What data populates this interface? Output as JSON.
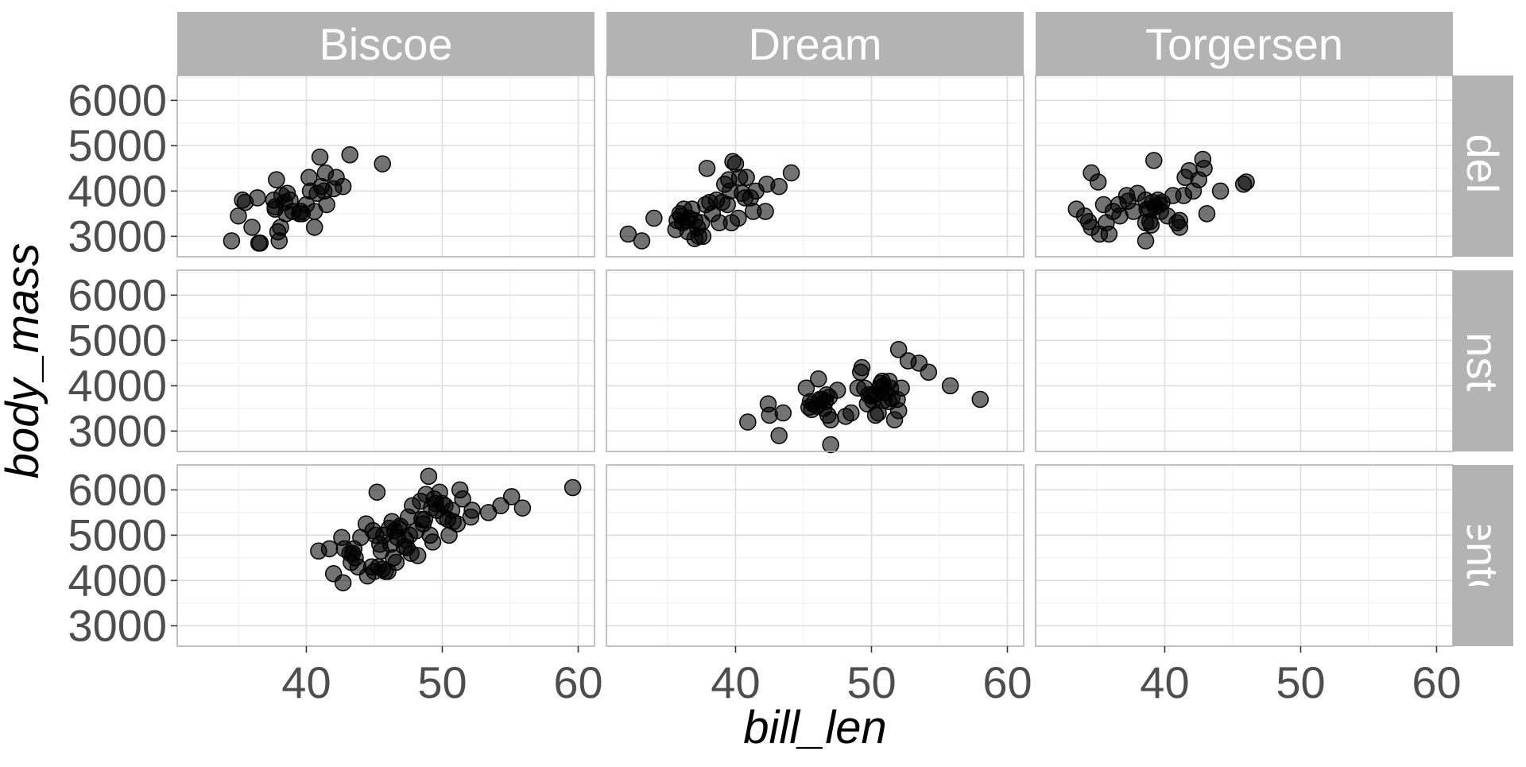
{
  "chart_data": {
    "type": "scatter",
    "xlabel": "bill_len",
    "ylabel": "body_mass",
    "xlim": [
      30.5,
      61.2
    ],
    "ylim": [
      2550,
      6550
    ],
    "xticks": [
      40,
      50,
      60
    ],
    "yticks": [
      3000,
      4000,
      5000,
      6000
    ],
    "facet_columns": [
      "Biscoe",
      "Dream",
      "Torgersen"
    ],
    "facet_rows": [
      "Adelie",
      "Chinstrap",
      "Gentoo"
    ],
    "colors": {
      "strip_background": "#b3b3b3",
      "strip_text": "#ffffff",
      "point": "#000000",
      "grid_major": "#dedede",
      "grid_minor": "#efefef",
      "panel_border": "#b3b3b3",
      "tick_text": "#4d4d4d"
    },
    "panels": [
      {
        "row": "Adelie",
        "col": "Biscoe",
        "points": [
          [
            34.5,
            2900
          ],
          [
            35.0,
            3450
          ],
          [
            35.3,
            3800
          ],
          [
            35.5,
            3750
          ],
          [
            36.0,
            3200
          ],
          [
            36.4,
            3850
          ],
          [
            36.5,
            2850
          ],
          [
            36.6,
            2850
          ],
          [
            37.6,
            3800
          ],
          [
            37.7,
            3600
          ],
          [
            37.8,
            4250
          ],
          [
            37.9,
            3100
          ],
          [
            38.0,
            2900
          ],
          [
            38.1,
            3200
          ],
          [
            38.2,
            3900
          ],
          [
            38.4,
            3750
          ],
          [
            38.6,
            3950
          ],
          [
            38.8,
            3800
          ],
          [
            39.0,
            3550
          ],
          [
            39.5,
            3500
          ],
          [
            39.6,
            3550
          ],
          [
            40.0,
            3700
          ],
          [
            40.2,
            4300
          ],
          [
            40.6,
            3200
          ],
          [
            40.6,
            3550
          ],
          [
            40.8,
            3950
          ],
          [
            41.0,
            4750
          ],
          [
            41.1,
            4100
          ],
          [
            41.3,
            4000
          ],
          [
            41.4,
            4400
          ],
          [
            41.5,
            3700
          ],
          [
            42.0,
            4050
          ],
          [
            42.2,
            4300
          ],
          [
            42.7,
            4100
          ],
          [
            43.2,
            4800
          ],
          [
            45.6,
            4600
          ],
          [
            37.7,
            3650
          ],
          [
            39.7,
            3500
          ],
          [
            38.5,
            3500
          ],
          [
            40.3,
            4000
          ]
        ]
      },
      {
        "row": "Adelie",
        "col": "Dream",
        "points": [
          [
            32.1,
            3050
          ],
          [
            33.1,
            2900
          ],
          [
            34.0,
            3400
          ],
          [
            35.6,
            3150
          ],
          [
            35.7,
            3350
          ],
          [
            35.9,
            3500
          ],
          [
            36.0,
            3450
          ],
          [
            36.1,
            3300
          ],
          [
            36.2,
            3600
          ],
          [
            36.4,
            3350
          ],
          [
            36.6,
            3400
          ],
          [
            36.8,
            3600
          ],
          [
            37.0,
            3350
          ],
          [
            37.2,
            3200
          ],
          [
            37.3,
            3000
          ],
          [
            37.5,
            3300
          ],
          [
            37.6,
            3000
          ],
          [
            37.8,
            3700
          ],
          [
            37.9,
            4500
          ],
          [
            38.1,
            3750
          ],
          [
            38.3,
            3500
          ],
          [
            38.6,
            3800
          ],
          [
            38.8,
            3300
          ],
          [
            39.0,
            3750
          ],
          [
            39.2,
            4150
          ],
          [
            39.4,
            3700
          ],
          [
            39.5,
            4250
          ],
          [
            39.7,
            3300
          ],
          [
            39.8,
            4650
          ],
          [
            40.0,
            4600
          ],
          [
            40.2,
            3400
          ],
          [
            40.3,
            4300
          ],
          [
            40.5,
            3950
          ],
          [
            40.7,
            3850
          ],
          [
            40.8,
            4300
          ],
          [
            41.1,
            3850
          ],
          [
            41.3,
            3550
          ],
          [
            41.5,
            4000
          ],
          [
            42.2,
            3550
          ],
          [
            42.3,
            4150
          ],
          [
            43.2,
            4100
          ],
          [
            44.1,
            4400
          ],
          [
            36.5,
            3100
          ],
          [
            39.6,
            4000
          ],
          [
            37.0,
            2950
          ]
        ]
      },
      {
        "row": "Adelie",
        "col": "Torgersen",
        "points": [
          [
            33.5,
            3600
          ],
          [
            34.1,
            3450
          ],
          [
            34.4,
            3325
          ],
          [
            34.6,
            4400
          ],
          [
            34.6,
            3200
          ],
          [
            35.1,
            4200
          ],
          [
            35.2,
            3050
          ],
          [
            35.5,
            3700
          ],
          [
            35.7,
            3300
          ],
          [
            35.9,
            3050
          ],
          [
            36.2,
            3550
          ],
          [
            36.6,
            3700
          ],
          [
            36.7,
            3450
          ],
          [
            37.2,
            3900
          ],
          [
            37.3,
            3775
          ],
          [
            37.7,
            3550
          ],
          [
            38.0,
            3950
          ],
          [
            38.6,
            3800
          ],
          [
            38.6,
            3300
          ],
          [
            38.7,
            3600
          ],
          [
            38.9,
            3600
          ],
          [
            38.9,
            3325
          ],
          [
            39.0,
            3250
          ],
          [
            39.1,
            3750
          ],
          [
            39.2,
            4675
          ],
          [
            39.3,
            3650
          ],
          [
            39.5,
            3800
          ],
          [
            39.6,
            3700
          ],
          [
            39.7,
            3550
          ],
          [
            40.2,
            3450
          ],
          [
            40.6,
            3900
          ],
          [
            40.9,
            3300
          ],
          [
            41.1,
            3200
          ],
          [
            41.1,
            3350
          ],
          [
            41.4,
            3900
          ],
          [
            41.5,
            4300
          ],
          [
            41.8,
            4450
          ],
          [
            42.1,
            4000
          ],
          [
            42.5,
            4250
          ],
          [
            42.8,
            4700
          ],
          [
            42.9,
            4500
          ],
          [
            43.1,
            3500
          ],
          [
            44.1,
            4000
          ],
          [
            45.8,
            4150
          ],
          [
            46.0,
            4200
          ],
          [
            38.6,
            2900
          ],
          [
            39.8,
            3750
          ]
        ]
      },
      {
        "row": "Chinstrap",
        "col": "Biscoe",
        "points": []
      },
      {
        "row": "Chinstrap",
        "col": "Dream",
        "points": [
          [
            40.9,
            3200
          ],
          [
            42.4,
            3600
          ],
          [
            42.5,
            3350
          ],
          [
            43.2,
            2900
          ],
          [
            43.5,
            3400
          ],
          [
            45.2,
            3950
          ],
          [
            45.4,
            3525
          ],
          [
            45.5,
            3650
          ],
          [
            45.6,
            3475
          ],
          [
            45.7,
            3600
          ],
          [
            46.0,
            3550
          ],
          [
            46.1,
            4150
          ],
          [
            46.2,
            3700
          ],
          [
            46.4,
            3700
          ],
          [
            46.5,
            3500
          ],
          [
            46.6,
            3650
          ],
          [
            46.7,
            3800
          ],
          [
            46.8,
            3350
          ],
          [
            46.9,
            3750
          ],
          [
            47.0,
            3250
          ],
          [
            47.5,
            3900
          ],
          [
            48.1,
            3325
          ],
          [
            48.5,
            3400
          ],
          [
            49.0,
            3950
          ],
          [
            49.2,
            4300
          ],
          [
            49.3,
            4400
          ],
          [
            49.5,
            3950
          ],
          [
            49.7,
            3600
          ],
          [
            49.8,
            3800
          ],
          [
            50.0,
            3775
          ],
          [
            50.1,
            3675
          ],
          [
            50.2,
            3800
          ],
          [
            50.3,
            3350
          ],
          [
            50.5,
            3400
          ],
          [
            50.6,
            3950
          ],
          [
            50.7,
            4050
          ],
          [
            50.8,
            4100
          ],
          [
            50.9,
            3675
          ],
          [
            51.0,
            3850
          ],
          [
            51.3,
            3650
          ],
          [
            51.4,
            3950
          ],
          [
            51.5,
            3725
          ],
          [
            51.7,
            3250
          ],
          [
            51.9,
            3700
          ],
          [
            52.0,
            4800
          ],
          [
            52.0,
            3450
          ],
          [
            52.2,
            3950
          ],
          [
            52.7,
            4550
          ],
          [
            53.5,
            4500
          ],
          [
            54.2,
            4300
          ],
          [
            55.8,
            4000
          ],
          [
            58.0,
            3700
          ],
          [
            47.0,
            2700
          ],
          [
            50.9,
            4000
          ],
          [
            51.3,
            4100
          ]
        ]
      },
      {
        "row": "Chinstrap",
        "col": "Torgersen",
        "points": []
      },
      {
        "row": "Gentoo",
        "col": "Biscoe",
        "points": [
          [
            40.9,
            4650
          ],
          [
            41.7,
            4700
          ],
          [
            42.0,
            4150
          ],
          [
            42.6,
            4950
          ],
          [
            42.7,
            3950
          ],
          [
            42.8,
            4700
          ],
          [
            43.2,
            4600
          ],
          [
            43.3,
            4400
          ],
          [
            43.4,
            4600
          ],
          [
            43.5,
            4700
          ],
          [
            43.6,
            4500
          ],
          [
            43.8,
            4300
          ],
          [
            44.0,
            4950
          ],
          [
            44.4,
            5250
          ],
          [
            44.5,
            4100
          ],
          [
            44.9,
            5100
          ],
          [
            45.0,
            4200
          ],
          [
            45.1,
            5000
          ],
          [
            45.2,
            5950
          ],
          [
            45.3,
            4300
          ],
          [
            45.4,
            4800
          ],
          [
            45.5,
            4650
          ],
          [
            45.6,
            4250
          ],
          [
            45.7,
            5000
          ],
          [
            45.8,
            4200
          ],
          [
            46.1,
            5150
          ],
          [
            46.2,
            4800
          ],
          [
            46.3,
            5300
          ],
          [
            46.4,
            4500
          ],
          [
            46.5,
            5100
          ],
          [
            46.6,
            4400
          ],
          [
            46.7,
            4950
          ],
          [
            46.8,
            5150
          ],
          [
            46.9,
            5200
          ],
          [
            47.2,
            4750
          ],
          [
            47.3,
            4900
          ],
          [
            47.5,
            5400
          ],
          [
            47.6,
            5000
          ],
          [
            47.7,
            4600
          ],
          [
            47.8,
            5650
          ],
          [
            48.1,
            5100
          ],
          [
            48.2,
            4550
          ],
          [
            48.4,
            5750
          ],
          [
            48.5,
            5350
          ],
          [
            48.6,
            5250
          ],
          [
            48.7,
            5350
          ],
          [
            48.8,
            5900
          ],
          [
            49.0,
            6300
          ],
          [
            49.1,
            5000
          ],
          [
            49.2,
            5600
          ],
          [
            49.4,
            5800
          ],
          [
            49.5,
            5700
          ],
          [
            49.6,
            5550
          ],
          [
            49.8,
            5950
          ],
          [
            50.0,
            5700
          ],
          [
            50.1,
            5400
          ],
          [
            50.2,
            5650
          ],
          [
            50.4,
            5350
          ],
          [
            50.5,
            5000
          ],
          [
            50.7,
            5550
          ],
          [
            50.8,
            5300
          ],
          [
            51.1,
            5250
          ],
          [
            51.3,
            6000
          ],
          [
            51.5,
            5800
          ],
          [
            52.1,
            5400
          ],
          [
            52.2,
            5550
          ],
          [
            53.4,
            5500
          ],
          [
            54.3,
            5650
          ],
          [
            55.1,
            5850
          ],
          [
            55.9,
            5600
          ],
          [
            59.6,
            6050
          ],
          [
            46.0,
            4200
          ],
          [
            47.4,
            4725
          ],
          [
            44.8,
            4300
          ],
          [
            49.3,
            4850
          ]
        ]
      },
      {
        "row": "Gentoo",
        "col": "Dream",
        "points": []
      },
      {
        "row": "Gentoo",
        "col": "Torgersen",
        "points": []
      }
    ]
  }
}
